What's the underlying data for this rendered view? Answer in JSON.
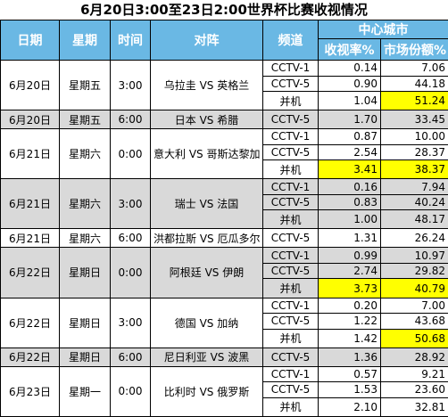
{
  "title": "6月20日3:00至23日2:00世界杯比赛收视情况",
  "headers": {
    "date": "日期",
    "weekday": "星期",
    "time": "时间",
    "match": "对阵",
    "channel": "频道",
    "group": "中心城市",
    "rating": "收视率%",
    "share": "市场份额%"
  },
  "colors": {
    "header_bg": "#6ab8e4",
    "shade": "#d9d9d9",
    "highlight": "#ffff00"
  },
  "games": [
    {
      "date": "6月20日",
      "weekday": "星期五",
      "time": "3:00",
      "match": "乌拉圭 VS 英格兰",
      "shaded": false,
      "rows": [
        {
          "channel": "CCTV-1",
          "rating": "0.14",
          "share": "7.06"
        },
        {
          "channel": "CCTV-5",
          "rating": "0.90",
          "share": "44.18"
        },
        {
          "channel": "并机",
          "rating": "1.04",
          "share": "51.24",
          "hl_share": true
        }
      ]
    },
    {
      "date": "6月20日",
      "weekday": "星期五",
      "time": "6:00",
      "match": "日本 VS 希腊",
      "shaded": true,
      "rows": [
        {
          "channel": "CCTV-5",
          "rating": "1.70",
          "share": "33.45"
        }
      ]
    },
    {
      "date": "6月21日",
      "weekday": "星期六",
      "time": "0:00",
      "match": "意大利 VS 哥斯达黎加",
      "shaded": false,
      "rows": [
        {
          "channel": "CCTV-1",
          "rating": "0.87",
          "share": "10.00"
        },
        {
          "channel": "CCTV-5",
          "rating": "2.54",
          "share": "28.37"
        },
        {
          "channel": "并机",
          "rating": "3.41",
          "share": "38.37",
          "hl_rating": true,
          "hl_share": true
        }
      ]
    },
    {
      "date": "6月21日",
      "weekday": "星期六",
      "time": "3:00",
      "match": "瑞士 VS 法国",
      "shaded": true,
      "rows": [
        {
          "channel": "CCTV-1",
          "rating": "0.16",
          "share": "7.94"
        },
        {
          "channel": "CCTV-5",
          "rating": "0.83",
          "share": "40.24"
        },
        {
          "channel": "并机",
          "rating": "1.00",
          "share": "48.17"
        }
      ]
    },
    {
      "date": "6月21日",
      "weekday": "星期六",
      "time": "6:00",
      "match": "洪都拉斯 VS 厄瓜多尔",
      "shaded": false,
      "rows": [
        {
          "channel": "CCTV-5",
          "rating": "1.31",
          "share": "26.24"
        }
      ]
    },
    {
      "date": "6月22日",
      "weekday": "星期日",
      "time": "0:00",
      "match": "阿根廷 VS 伊朗",
      "shaded": true,
      "rows": [
        {
          "channel": "CCTV-1",
          "rating": "0.99",
          "share": "10.97"
        },
        {
          "channel": "CCTV-5",
          "rating": "2.74",
          "share": "29.82"
        },
        {
          "channel": "并机",
          "rating": "3.73",
          "share": "40.79",
          "hl_rating": true,
          "hl_share": true
        }
      ]
    },
    {
      "date": "6月22日",
      "weekday": "星期日",
      "time": "3:00",
      "match": "德国 VS 加纳",
      "shaded": false,
      "rows": [
        {
          "channel": "CCTV-1",
          "rating": "0.20",
          "share": "7.00"
        },
        {
          "channel": "CCTV-5",
          "rating": "1.22",
          "share": "43.68"
        },
        {
          "channel": "并机",
          "rating": "1.42",
          "share": "50.68",
          "hl_share": true
        }
      ]
    },
    {
      "date": "6月22日",
      "weekday": "星期日",
      "time": "6:00",
      "match": "尼日利亚 VS 波黑",
      "shaded": true,
      "rows": [
        {
          "channel": "CCTV-5",
          "rating": "1.36",
          "share": "28.92"
        }
      ]
    },
    {
      "date": "6月23日",
      "weekday": "星期一",
      "time": "0:00",
      "match": "比利时 VS 俄罗斯",
      "shaded": false,
      "rows": [
        {
          "channel": "CCTV-1",
          "rating": "0.57",
          "share": "9.21"
        },
        {
          "channel": "CCTV-5",
          "rating": "1.53",
          "share": "23.60"
        },
        {
          "channel": "并机",
          "rating": "2.10",
          "share": "32.81"
        }
      ]
    }
  ]
}
